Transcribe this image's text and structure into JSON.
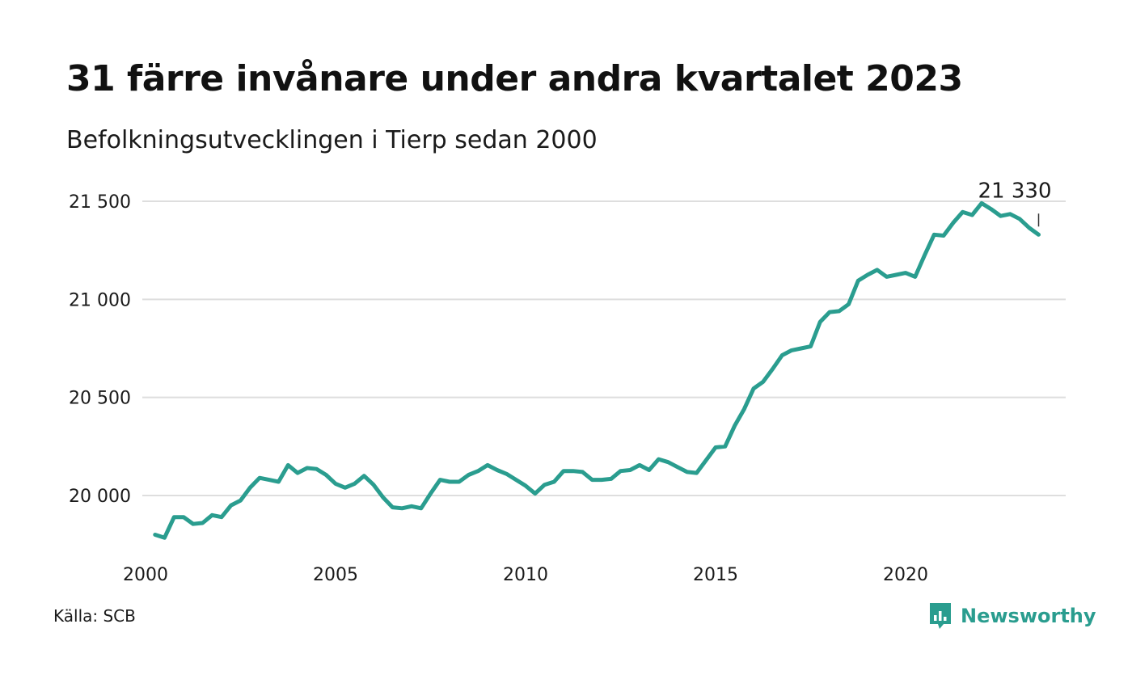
{
  "header": {
    "title": "31 färre invånare under andra kvartalet 2023",
    "subtitle": "Befolkningsutvecklingen i Tierp sedan 2000"
  },
  "footer": {
    "source": "Källa: SCB",
    "brand": "Newsworthy",
    "brand_icon": "chat-bar-chart-icon"
  },
  "colors": {
    "line": "#2a9d8f",
    "grid": "#dedede",
    "brand": "#2a9d8f"
  },
  "chart_data": {
    "type": "line",
    "title": "31 färre invånare under andra kvartalet 2023",
    "subtitle": "Befolkningsutvecklingen i Tierp sedan 2000",
    "xlabel": "",
    "ylabel": "",
    "xlim": [
      2000.0,
      2024.75
    ],
    "ylim": [
      19760,
      21560
    ],
    "x_ticks": [
      2000,
      2005,
      2010,
      2015,
      2020
    ],
    "x_tick_labels": [
      "2000",
      "2005",
      "2010",
      "2015",
      "2020"
    ],
    "y_ticks": [
      20000,
      20500,
      21000,
      21500
    ],
    "y_tick_labels": [
      "20 000",
      "20 500",
      "21 000",
      "21 500"
    ],
    "grid": "horizontal",
    "legend": "none",
    "end_label": "21 330",
    "series": [
      {
        "x": [
          2000.25,
          2000.5,
          2000.75,
          2001.0,
          2001.25,
          2001.5,
          2001.75,
          2002.0,
          2002.25,
          2002.5,
          2002.75,
          2003.0,
          2003.25,
          2003.5,
          2003.75,
          2004.0,
          2004.25,
          2004.5,
          2004.75,
          2005.0,
          2005.25,
          2005.5,
          2005.75,
          2006.0,
          2006.25,
          2006.5,
          2006.75,
          2007.0,
          2007.25,
          2007.5,
          2007.75,
          2008.0,
          2008.25,
          2008.5,
          2008.75,
          2009.0,
          2009.25,
          2009.5,
          2009.75,
          2010.0,
          2010.25,
          2010.5,
          2010.75,
          2011.0,
          2011.25,
          2011.5,
          2011.75,
          2012.0,
          2012.25,
          2012.5,
          2012.75,
          2013.0,
          2013.25,
          2013.5,
          2013.75,
          2014.0,
          2014.25,
          2014.5,
          2014.75,
          2015.0,
          2015.25,
          2015.5,
          2015.75,
          2016.0,
          2016.25,
          2016.5,
          2016.75,
          2017.0,
          2017.25,
          2017.5,
          2017.75,
          2018.0,
          2018.25,
          2018.5,
          2018.75,
          2019.0,
          2019.25,
          2019.5,
          2019.75,
          2020.0,
          2020.25,
          2020.5,
          2020.75,
          2021.0,
          2021.25,
          2021.5,
          2021.75,
          2022.0,
          2022.25,
          2022.5,
          2022.75,
          2023.0,
          2023.25,
          2023.5
        ],
        "values": [
          19800,
          19785,
          19890,
          19890,
          19855,
          19860,
          19900,
          19890,
          19950,
          19975,
          20040,
          20090,
          20080,
          20070,
          20155,
          20115,
          20140,
          20135,
          20105,
          20060,
          20040,
          20060,
          20100,
          20055,
          19990,
          19940,
          19935,
          19945,
          19935,
          20010,
          20080,
          20070,
          20070,
          20105,
          20125,
          20155,
          20130,
          20110,
          20080,
          20050,
          20010,
          20055,
          20070,
          20125,
          20125,
          20120,
          20080,
          20080,
          20085,
          20125,
          20130,
          20155,
          20130,
          20185,
          20170,
          20145,
          20120,
          20115,
          20180,
          20245,
          20250,
          20355,
          20440,
          20545,
          20580,
          20645,
          20715,
          20740,
          20750,
          20760,
          20885,
          20935,
          20940,
          20975,
          21095,
          21125,
          21150,
          21115,
          21125,
          21135,
          21115,
          21225,
          21330,
          21325,
          21390,
          21445,
          21430,
          21490,
          21460,
          21425,
          21435,
          21410,
          21365,
          21330
        ]
      }
    ]
  }
}
